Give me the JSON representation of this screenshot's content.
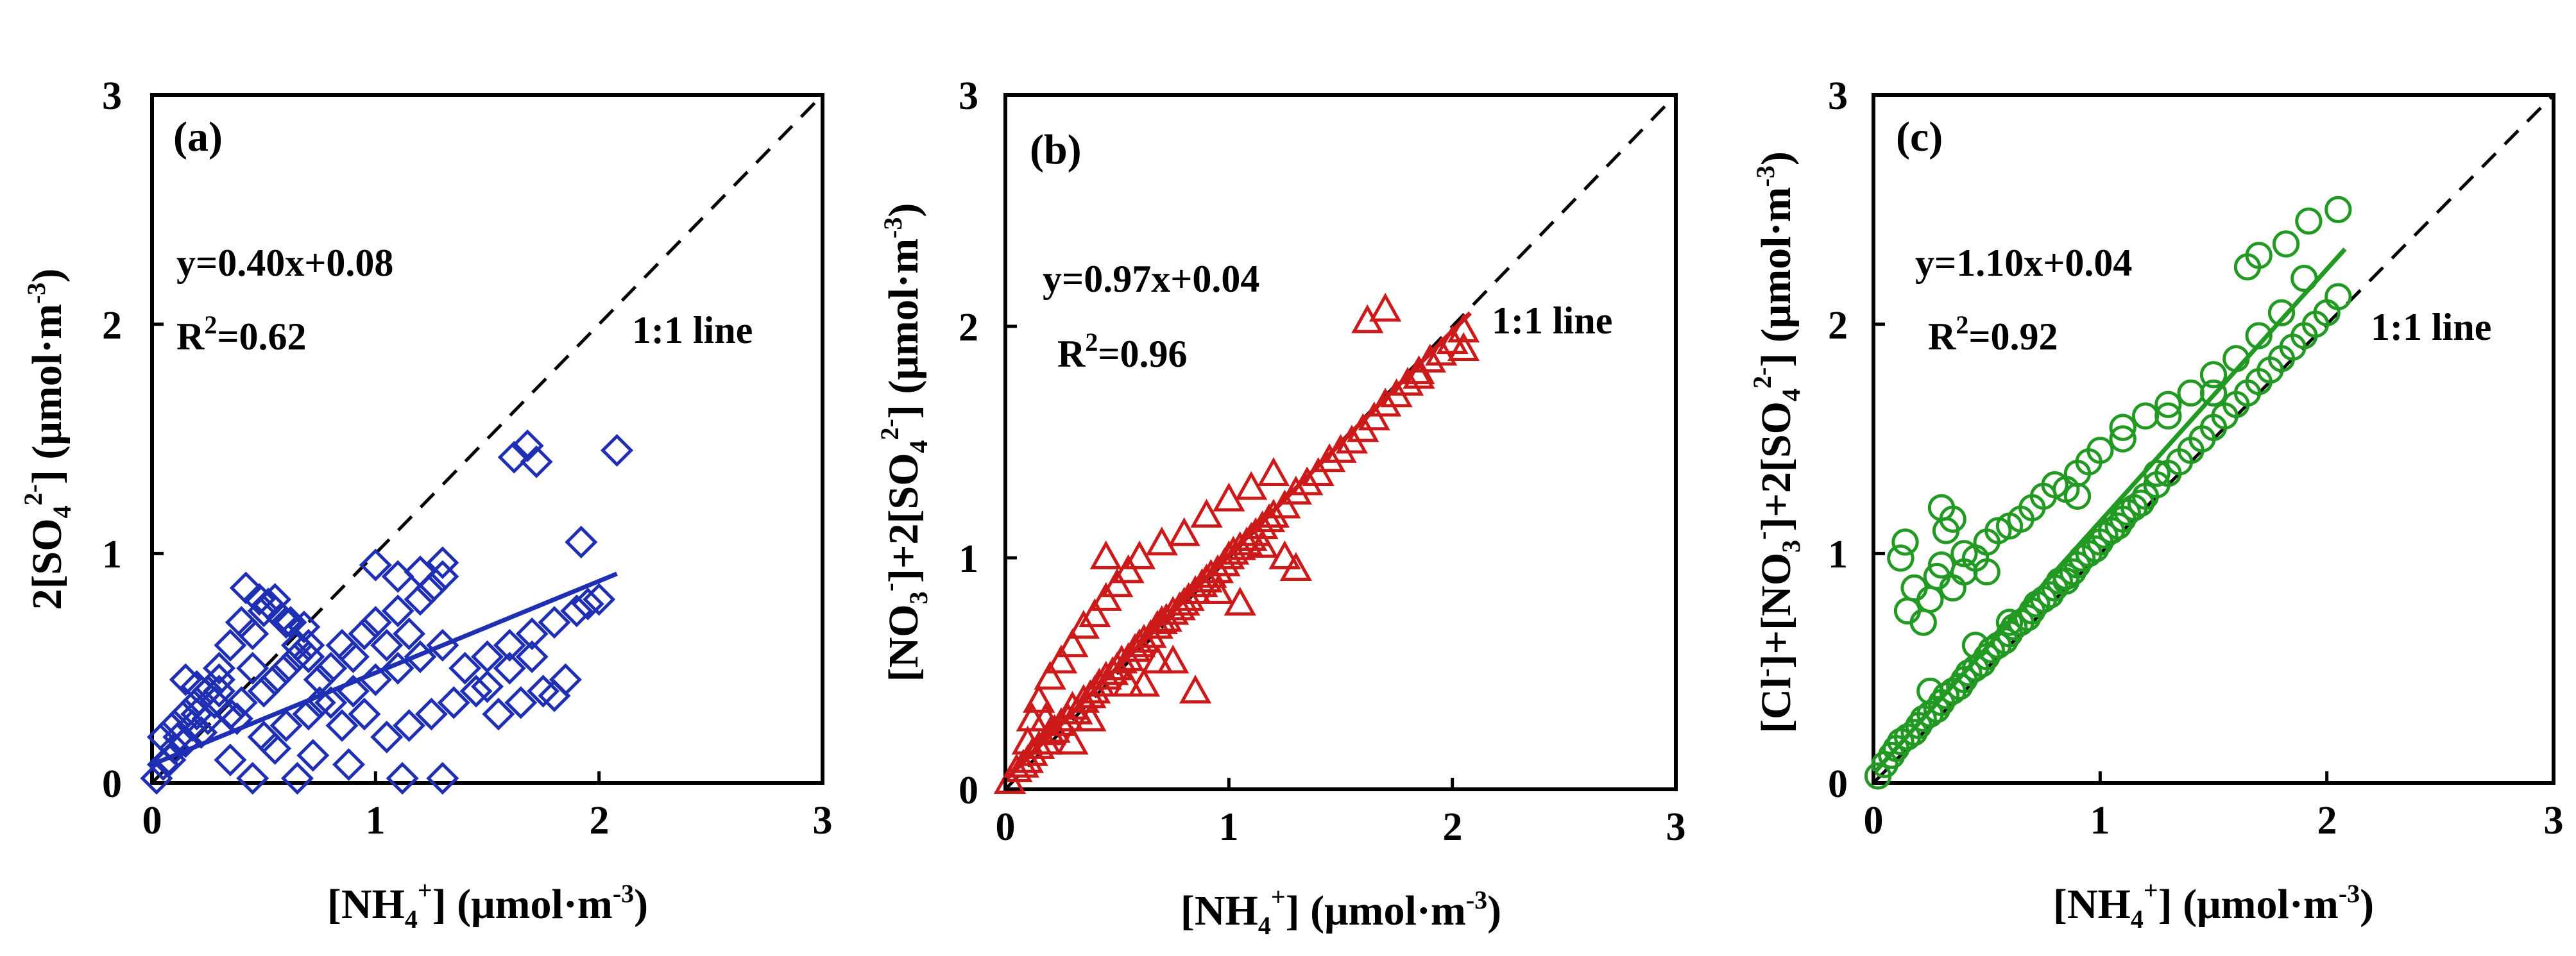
{
  "chart_data": [
    {
      "type": "scatter",
      "panel_label": "(a)",
      "color": "#1f2fb3",
      "marker": "diamond",
      "xlim": [
        0,
        3
      ],
      "ylim": [
        0,
        3
      ],
      "x_ticks": [
        "0",
        "1",
        "2",
        "3"
      ],
      "y_ticks": [
        "0",
        "1",
        "2",
        "3"
      ],
      "xlabel": {
        "pre": "[NH",
        "sub": "4",
        "sup": "+",
        "post": "] (μmol·m",
        "exp": "-3",
        "close": ")"
      },
      "ylabel": {
        "pre": "2[SO",
        "sub": "4",
        "sup": "2-",
        "post": "] (μmol·m",
        "exp": "-3",
        "close": ")"
      },
      "fit": {
        "slope": 0.4,
        "intercept": 0.08,
        "x_range": [
          0,
          2.08
        ]
      },
      "equation": "y=0.40x+0.08",
      "r2_prefix": "R",
      "r2_exp": "2",
      "r2_value": "=0.62",
      "reference_line": "1:1 line",
      "points_x": [
        0.02,
        0.05,
        0.08,
        0.1,
        0.12,
        0.15,
        0.18,
        0.2,
        0.22,
        0.25,
        0.28,
        0.3,
        0.05,
        0.1,
        0.15,
        0.2,
        0.25,
        0.3,
        0.35,
        0.4,
        0.45,
        0.5,
        0.55,
        0.6,
        0.65,
        0.7,
        0.75,
        0.8,
        0.85,
        0.9,
        0.95,
        1.0,
        1.05,
        1.1,
        1.15,
        1.2,
        1.25,
        1.3,
        0.3,
        0.35,
        0.4,
        0.45,
        0.5,
        0.55,
        0.6,
        0.65,
        0.7,
        0.8,
        0.9,
        1.0,
        1.1,
        1.2,
        1.3,
        1.4,
        1.5,
        1.6,
        1.7,
        1.8,
        1.9,
        2.0,
        0.5,
        0.6,
        0.7,
        0.75,
        0.85,
        0.95,
        1.05,
        1.15,
        1.25,
        1.35,
        1.45,
        1.55,
        1.65,
        1.75,
        1.85,
        0.42,
        0.48,
        0.52,
        0.58,
        0.62,
        0.68,
        1.0,
        1.1,
        1.2,
        1.3,
        1.62,
        1.68,
        1.72,
        2.08,
        1.92,
        1.95,
        1.12,
        1.3,
        0.35,
        0.55,
        0.72,
        0.88,
        0.45,
        0.65,
        1.5,
        1.6,
        1.7,
        1.8,
        0.2,
        0.28,
        0.38,
        0.15,
        0.25
      ],
      "points_y": [
        0.02,
        0.08,
        0.1,
        0.15,
        0.2,
        0.18,
        0.25,
        0.3,
        0.22,
        0.28,
        0.35,
        0.4,
        0.2,
        0.25,
        0.3,
        0.35,
        0.4,
        0.45,
        0.3,
        0.35,
        0.5,
        0.4,
        0.45,
        0.5,
        0.55,
        0.6,
        0.45,
        0.5,
        0.6,
        0.55,
        0.65,
        0.7,
        0.6,
        0.75,
        0.65,
        0.8,
        0.85,
        0.9,
        0.5,
        0.6,
        0.7,
        0.65,
        0.75,
        0.8,
        0.7,
        0.6,
        0.55,
        0.35,
        0.4,
        0.45,
        0.5,
        0.55,
        0.6,
        0.5,
        0.55,
        0.6,
        0.65,
        0.7,
        0.75,
        0.8,
        0.2,
        0.25,
        0.3,
        0.35,
        0.25,
        0.3,
        0.2,
        0.25,
        0.3,
        0.35,
        0.4,
        0.3,
        0.35,
        0.4,
        0.45,
        0.85,
        0.8,
        0.78,
        0.72,
        0.7,
        0.68,
        0.95,
        0.9,
        0.92,
        0.96,
        1.42,
        1.47,
        1.4,
        1.45,
        1.05,
        0.78,
        0.02,
        0.02,
        0.1,
        0.15,
        0.12,
        0.08,
        0.02,
        0.02,
        0.42,
        0.5,
        0.55,
        0.38,
        0.42,
        0.35,
        0.28,
        0.45,
        0.4
      ]
    },
    {
      "type": "scatter",
      "panel_label": "(b)",
      "color": "#cc1a1a",
      "marker": "triangle",
      "xlim": [
        0,
        3
      ],
      "ylim": [
        0,
        3
      ],
      "x_ticks": [
        "0",
        "1",
        "2",
        "3"
      ],
      "y_ticks": [
        "0",
        "1",
        "2",
        "3"
      ],
      "xlabel": {
        "pre": "[NH",
        "sub": "4",
        "sup": "+",
        "post": "] (μmol·m",
        "exp": "-3",
        "close": ")"
      },
      "ylabel": {
        "pre": "[NO",
        "sub": "3",
        "sup": "-",
        "mid": "]+2[SO",
        "sub2": "4",
        "sup2": "2-",
        "post": "] (μmol·m",
        "exp": "-3",
        "close": ")"
      },
      "fit": {
        "slope": 0.97,
        "intercept": 0.04,
        "x_range": [
          0,
          2.08
        ]
      },
      "equation": "y=0.97x+0.04",
      "r2_prefix": "R",
      "r2_exp": "2",
      "r2_value": "=0.96",
      "reference_line": "1:1 line",
      "points_x": [
        0.02,
        0.05,
        0.08,
        0.1,
        0.12,
        0.15,
        0.18,
        0.2,
        0.22,
        0.25,
        0.28,
        0.3,
        0.32,
        0.35,
        0.38,
        0.4,
        0.42,
        0.45,
        0.48,
        0.5,
        0.52,
        0.55,
        0.58,
        0.6,
        0.62,
        0.65,
        0.68,
        0.7,
        0.72,
        0.75,
        0.78,
        0.8,
        0.82,
        0.85,
        0.88,
        0.9,
        0.92,
        0.95,
        0.98,
        1.0,
        1.02,
        1.05,
        1.08,
        1.1,
        1.12,
        1.15,
        1.18,
        1.2,
        1.25,
        1.3,
        1.35,
        1.4,
        1.45,
        1.5,
        1.55,
        1.6,
        1.65,
        1.7,
        1.75,
        1.8,
        1.85,
        1.9,
        1.95,
        2.0,
        2.05,
        0.15,
        0.2,
        0.25,
        0.3,
        0.35,
        0.4,
        0.45,
        0.5,
        0.55,
        0.6,
        0.7,
        0.8,
        0.9,
        1.0,
        1.1,
        1.2,
        0.45,
        0.62,
        0.75,
        0.85,
        1.05,
        1.25,
        1.3,
        1.62,
        1.7,
        2.05,
        1.85,
        0.1,
        0.12,
        0.18,
        0.3,
        0.38,
        0.55,
        0.68,
        0.95,
        1.15
      ],
      "points_y": [
        0.03,
        0.08,
        0.1,
        0.12,
        0.15,
        0.18,
        0.2,
        0.24,
        0.25,
        0.28,
        0.3,
        0.35,
        0.33,
        0.38,
        0.4,
        0.42,
        0.45,
        0.48,
        0.5,
        0.52,
        0.55,
        0.56,
        0.6,
        0.62,
        0.64,
        0.66,
        0.7,
        0.72,
        0.73,
        0.76,
        0.78,
        0.8,
        0.82,
        0.85,
        0.88,
        0.9,
        0.92,
        0.94,
        0.97,
        1.0,
        1.02,
        1.04,
        1.06,
        1.08,
        1.1,
        1.13,
        1.16,
        1.18,
        1.22,
        1.28,
        1.32,
        1.36,
        1.42,
        1.46,
        1.5,
        1.55,
        1.6,
        1.66,
        1.7,
        1.75,
        1.8,
        1.85,
        1.88,
        1.93,
        1.98,
        0.38,
        0.48,
        0.55,
        0.62,
        0.7,
        0.75,
        0.82,
        0.88,
        0.94,
        1.0,
        1.06,
        1.1,
        1.18,
        1.25,
        1.3,
        1.36,
        1.0,
        0.45,
        0.55,
        0.42,
        0.8,
        1.0,
        0.95,
        2.02,
        2.07,
        1.9,
        1.78,
        0.2,
        0.3,
        0.3,
        0.2,
        0.3,
        0.45,
        0.55,
        0.85,
        1.05
      ]
    },
    {
      "type": "scatter",
      "panel_label": "(c)",
      "color": "#229922",
      "marker": "circle",
      "xlim": [
        0,
        3
      ],
      "ylim": [
        0,
        3
      ],
      "x_ticks": [
        "0",
        "1",
        "2",
        "3"
      ],
      "y_ticks": [
        "0",
        "1",
        "2",
        "3"
      ],
      "xlabel": {
        "pre": "[NH",
        "sub": "4",
        "sup": "+",
        "post": "] (μmol·m",
        "exp": "-3",
        "close": ")"
      },
      "ylabel": {
        "pre": "[Cl",
        "sup": "-",
        "mid": "]+[NO",
        "sub": "3",
        "sup_b": "-",
        "mid2": "]+2[SO",
        "sub2": "4",
        "sup2": "2-",
        "post": "] (μmol·m",
        "exp": "-3",
        "close": ")"
      },
      "fit": {
        "slope": 1.1,
        "intercept": 0.04,
        "x_range": [
          0,
          2.08
        ]
      },
      "equation": "y=1.10x+0.04",
      "r2_prefix": "R",
      "r2_exp": "2",
      "r2_value": "=0.92",
      "reference_line": "1:1 line",
      "points_x": [
        0.02,
        0.05,
        0.08,
        0.1,
        0.12,
        0.15,
        0.18,
        0.2,
        0.22,
        0.25,
        0.28,
        0.3,
        0.32,
        0.35,
        0.38,
        0.4,
        0.42,
        0.45,
        0.48,
        0.5,
        0.52,
        0.55,
        0.58,
        0.6,
        0.62,
        0.65,
        0.68,
        0.7,
        0.72,
        0.75,
        0.78,
        0.8,
        0.82,
        0.85,
        0.88,
        0.9,
        0.92,
        0.95,
        0.98,
        1.0,
        1.02,
        1.05,
        1.08,
        1.1,
        1.12,
        1.15,
        1.18,
        1.2,
        1.25,
        1.3,
        1.35,
        1.4,
        1.45,
        1.5,
        1.55,
        1.6,
        1.65,
        1.7,
        1.75,
        1.8,
        1.85,
        1.9,
        1.95,
        2.0,
        2.05,
        0.15,
        0.18,
        0.22,
        0.25,
        0.28,
        0.3,
        0.35,
        0.4,
        0.45,
        0.5,
        0.55,
        0.6,
        0.65,
        0.7,
        0.75,
        0.8,
        0.85,
        0.9,
        0.95,
        1.0,
        1.1,
        1.2,
        1.3,
        1.4,
        1.5,
        1.6,
        1.7,
        1.8,
        1.9,
        2.05,
        0.12,
        0.14,
        0.3,
        0.35,
        0.32,
        0.4,
        0.5,
        0.9,
        1.1,
        1.3,
        1.5,
        1.7,
        1.82,
        1.92,
        0.25,
        0.45,
        0.6,
        0.85,
        1.05,
        1.25,
        1.45,
        1.65
      ],
      "points_y": [
        0.03,
        0.08,
        0.12,
        0.15,
        0.18,
        0.2,
        0.22,
        0.25,
        0.28,
        0.3,
        0.32,
        0.35,
        0.38,
        0.4,
        0.42,
        0.45,
        0.48,
        0.5,
        0.52,
        0.55,
        0.58,
        0.6,
        0.62,
        0.65,
        0.68,
        0.7,
        0.72,
        0.75,
        0.78,
        0.8,
        0.82,
        0.85,
        0.88,
        0.9,
        0.92,
        0.95,
        0.98,
        1.0,
        1.02,
        1.05,
        1.08,
        1.1,
        1.12,
        1.15,
        1.18,
        1.2,
        1.22,
        1.25,
        1.3,
        1.35,
        1.4,
        1.45,
        1.5,
        1.55,
        1.6,
        1.65,
        1.7,
        1.75,
        1.8,
        1.85,
        1.9,
        1.95,
        2.0,
        2.05,
        2.12,
        0.75,
        0.85,
        0.7,
        0.8,
        0.9,
        0.95,
        0.85,
        0.92,
        0.98,
        1.05,
        1.1,
        1.12,
        1.15,
        1.2,
        1.25,
        1.3,
        1.28,
        1.35,
        1.4,
        1.45,
        1.5,
        1.6,
        1.65,
        1.7,
        1.78,
        1.85,
        1.95,
        2.05,
        2.2,
        2.5,
        0.98,
        1.05,
        1.2,
        1.15,
        1.1,
        1.0,
        0.92,
        1.25,
        1.55,
        1.6,
        1.7,
        2.3,
        2.35,
        2.45,
        0.4,
        0.6,
        0.7,
        0.88,
        1.1,
        1.35,
        1.5,
        2.25
      ]
    }
  ]
}
